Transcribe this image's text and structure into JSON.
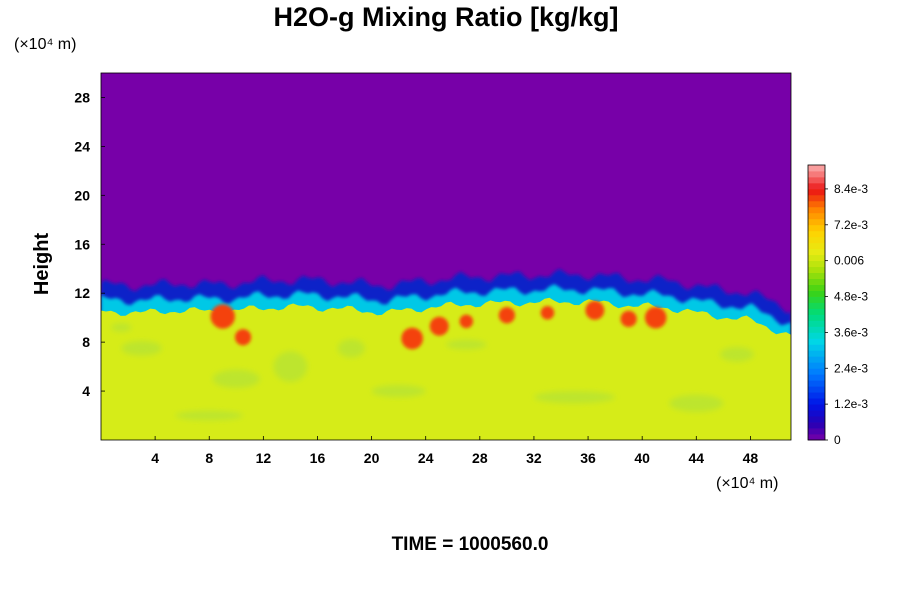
{
  "chart_data": {
    "type": "heatmap",
    "title": "H2O-g Mixing Ratio [kg/kg]",
    "ylabel": "Height",
    "xunit": "(×10⁴ m)",
    "yunit": "(×10⁴ m)",
    "xlim": [
      0,
      51
    ],
    "ylim": [
      0,
      30
    ],
    "x_ticks": [
      "4",
      "8",
      "12",
      "16",
      "20",
      "24",
      "28",
      "32",
      "36",
      "40",
      "44",
      "48"
    ],
    "y_ticks": [
      "4",
      "8",
      "12",
      "16",
      "20",
      "24",
      "28"
    ],
    "colorbar": {
      "min": 0,
      "max": 0.0092,
      "tick_labels": [
        "0",
        "1.2e-3",
        "2.4e-3",
        "3.6e-3",
        "4.8e-3",
        "0.006",
        "7.2e-3",
        "8.4e-3"
      ],
      "tick_values": [
        0,
        0.0012,
        0.0024,
        0.0036,
        0.0048,
        0.006,
        0.0072,
        0.0084
      ]
    },
    "boundary_height_profile": {
      "x": [
        0,
        3,
        6,
        9,
        12,
        15,
        18,
        21,
        24,
        27,
        30,
        33,
        36,
        39,
        42,
        45,
        48,
        51
      ],
      "y": [
        10.5,
        10.4,
        10.6,
        10.5,
        10.8,
        10.9,
        10.7,
        10.4,
        10.8,
        11.1,
        11.2,
        11.3,
        11.3,
        11.0,
        10.8,
        10.2,
        9.8,
        8.5
      ]
    },
    "moist_layer_value": 0.0065,
    "upper_layer_value": 0
  },
  "time_label": "TIME = 1000560.0"
}
